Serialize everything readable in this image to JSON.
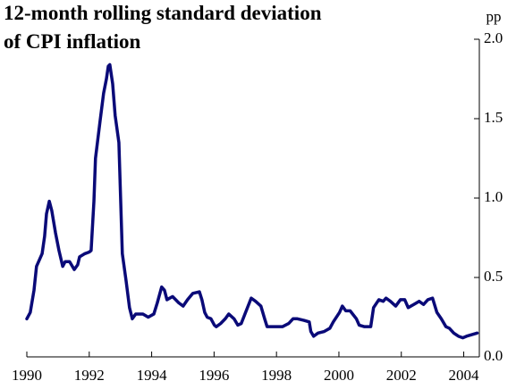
{
  "chart_data": {
    "type": "line",
    "title": [
      "12-month rolling standard deviation",
      "of CPI inflation"
    ],
    "y_axis_label": "pp",
    "x": [
      1990.0,
      1990.11,
      1990.23,
      1990.31,
      1990.49,
      1990.57,
      1990.63,
      1990.72,
      1990.8,
      1990.92,
      1991.03,
      1991.15,
      1991.23,
      1991.37,
      1991.52,
      1991.63,
      1991.69,
      1991.86,
      1992.0,
      1992.06,
      1992.15,
      1992.2,
      1992.35,
      1992.46,
      1992.55,
      1992.61,
      1992.66,
      1992.75,
      1992.83,
      1992.95,
      1993.06,
      1993.18,
      1993.29,
      1993.38,
      1993.49,
      1993.61,
      1993.72,
      1993.89,
      1994.07,
      1994.18,
      1994.32,
      1994.41,
      1994.49,
      1994.67,
      1994.87,
      1995.01,
      1995.15,
      1995.32,
      1995.53,
      1995.61,
      1995.7,
      1995.78,
      1995.9,
      1996.01,
      1996.07,
      1996.21,
      1996.36,
      1996.47,
      1996.64,
      1996.76,
      1996.87,
      1997.01,
      1997.19,
      1997.33,
      1997.5,
      1997.62,
      1997.7,
      1998.02,
      1998.19,
      1998.39,
      1998.53,
      1998.67,
      1998.88,
      1999.05,
      1999.1,
      1999.19,
      1999.33,
      1999.53,
      1999.71,
      1999.82,
      2000.02,
      2000.11,
      2000.22,
      2000.36,
      2000.56,
      2000.65,
      2000.82,
      2001.02,
      2001.11,
      2001.28,
      2001.42,
      2001.51,
      2001.65,
      2001.82,
      2001.97,
      2002.11,
      2002.22,
      2002.4,
      2002.57,
      2002.71,
      2002.85,
      2003.0,
      2003.14,
      2003.28,
      2003.43,
      2003.54,
      2003.68,
      2003.83,
      2003.97,
      2004.09,
      2004.26,
      2004.43
    ],
    "series": [
      {
        "name": "12-month rolling standard deviation of CPI inflation",
        "color": "#0a0a78",
        "values": [
          0.24,
          0.28,
          0.42,
          0.57,
          0.65,
          0.76,
          0.9,
          0.98,
          0.92,
          0.78,
          0.67,
          0.57,
          0.6,
          0.6,
          0.55,
          0.58,
          0.63,
          0.65,
          0.66,
          0.67,
          0.98,
          1.25,
          1.49,
          1.66,
          1.75,
          1.83,
          1.84,
          1.72,
          1.52,
          1.35,
          0.65,
          0.48,
          0.31,
          0.24,
          0.27,
          0.27,
          0.27,
          0.25,
          0.27,
          0.34,
          0.44,
          0.42,
          0.36,
          0.38,
          0.34,
          0.32,
          0.36,
          0.4,
          0.41,
          0.36,
          0.28,
          0.25,
          0.24,
          0.2,
          0.19,
          0.21,
          0.24,
          0.27,
          0.24,
          0.2,
          0.21,
          0.28,
          0.37,
          0.35,
          0.32,
          0.24,
          0.19,
          0.19,
          0.19,
          0.21,
          0.24,
          0.24,
          0.23,
          0.22,
          0.16,
          0.13,
          0.15,
          0.16,
          0.18,
          0.22,
          0.28,
          0.32,
          0.29,
          0.29,
          0.24,
          0.2,
          0.19,
          0.19,
          0.31,
          0.36,
          0.35,
          0.37,
          0.35,
          0.32,
          0.36,
          0.36,
          0.31,
          0.33,
          0.35,
          0.33,
          0.36,
          0.37,
          0.28,
          0.24,
          0.19,
          0.18,
          0.15,
          0.13,
          0.12,
          0.13,
          0.14,
          0.15
        ]
      }
    ],
    "xlim": [
      1990,
      2004.5
    ],
    "xticks": [
      1990,
      1992,
      1994,
      1996,
      1998,
      2000,
      2002,
      2004
    ],
    "ylim": [
      0,
      2
    ],
    "yticks": [
      {
        "value": 0,
        "label": "0.0"
      },
      {
        "value": 0.5,
        "label": "0.5"
      },
      {
        "value": 1,
        "label": "1.0"
      },
      {
        "value": 1.5,
        "label": "1.5"
      },
      {
        "value": 2,
        "label": "2.0"
      }
    ],
    "grid": false
  }
}
